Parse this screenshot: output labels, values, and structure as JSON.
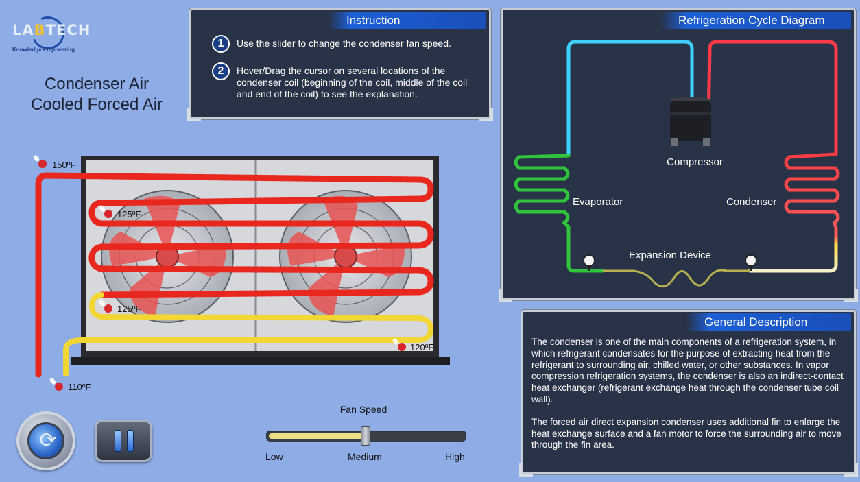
{
  "logo": {
    "brand_prefix": "LA",
    "brand_mark": "B",
    "brand_suffix": "TECH",
    "tagline": "Knowledge Engineering"
  },
  "title": {
    "line1": "Condenser Air",
    "line2": "Cooled Forced Air"
  },
  "instruction": {
    "heading": "Instruction",
    "steps": [
      {
        "num": "1",
        "text": "Use the slider to change the condenser fan speed."
      },
      {
        "num": "2",
        "text": "Hover/Drag the cursor on several locations of the condenser coil (beginning of the coil, middle of the coil and end of the coil) to see the explanation."
      }
    ]
  },
  "cycle": {
    "heading": "Refrigeration Cycle Diagram",
    "labels": {
      "compressor": "Compressor",
      "evaporator": "Evaporator",
      "condenser": "Condenser",
      "expansion": "Expansion Device"
    }
  },
  "description": {
    "heading": "General Description",
    "p1": "The condenser is one of the main components of a refrigeration system, in which refrigerant condensates for the purpose of extracting heat from the refrigerant to surrounding air, chilled water, or other substances. In vapor compression refrigeration systems, the condenser is also an indirect-contact heat exchanger (refrigerant exchange heat through the condenser tube coil wall).",
    "p2": "The forced air direct expansion condenser uses additional fin to enlarge the heat exchange surface and a fan motor to force the surrounding air to move through the fin area."
  },
  "condenser": {
    "temps": {
      "inlet": "150ºF",
      "upper": "125ºF",
      "lower": "125ºF",
      "right": "120ºF",
      "outlet": "110ºF"
    },
    "colors": {
      "hot": "#e8281e",
      "warm": "#f2d633",
      "cool": "#ece59a"
    }
  },
  "controls": {
    "reset_icon": "reset-icon",
    "pause_icon": "pause-icon",
    "fan_speed_label": "Fan Speed",
    "fan_speed_value": 0.5,
    "fan_speed_options": [
      "Low",
      "Medium",
      "High"
    ]
  }
}
